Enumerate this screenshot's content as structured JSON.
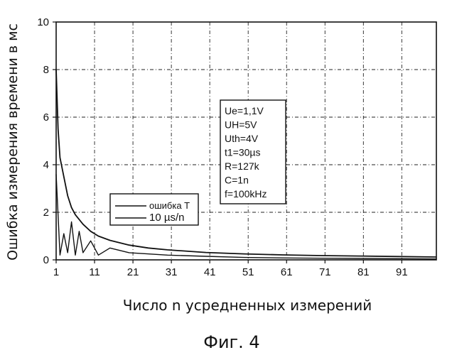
{
  "chart_data": {
    "type": "line",
    "ylabel": "Ошибка измерения времени в мс",
    "xlabel": "Число n усредненных измерений",
    "caption": "Фиг. 4",
    "xlim": [
      1,
      100
    ],
    "ylim": [
      0,
      10
    ],
    "x_ticks": [
      1,
      11,
      21,
      31,
      41,
      51,
      61,
      71,
      81,
      91
    ],
    "y_ticks": [
      0,
      2,
      4,
      6,
      8,
      10
    ],
    "grid": true,
    "legend_position": "center-left",
    "series": [
      {
        "name": "ошибка T",
        "style": "smooth decreasing curve",
        "x": [
          1,
          1.5,
          2,
          3,
          4,
          5,
          6,
          8,
          10,
          12,
          15,
          20,
          25,
          30,
          40,
          50,
          60,
          70,
          80,
          90,
          100
        ],
        "y": [
          8.0,
          5.5,
          4.3,
          3.5,
          2.7,
          2.2,
          1.9,
          1.5,
          1.2,
          1.0,
          0.82,
          0.62,
          0.5,
          0.42,
          0.31,
          0.25,
          0.21,
          0.18,
          0.16,
          0.14,
          0.12
        ]
      },
      {
        "name": "10 µs/n",
        "style": "oscillating curve under an envelope",
        "x": [
          1,
          2,
          3,
          4,
          5,
          6,
          7,
          8,
          10,
          12,
          15,
          20,
          30,
          40,
          50,
          60,
          70,
          80,
          90,
          100
        ],
        "y": [
          3.6,
          0.2,
          1.1,
          0.3,
          1.6,
          0.2,
          1.2,
          0.3,
          0.8,
          0.2,
          0.5,
          0.3,
          0.2,
          0.15,
          0.1,
          0.08,
          0.07,
          0.06,
          0.05,
          0.04
        ]
      }
    ],
    "annotation": [
      "Ue=1,1V",
      "UH=5V",
      "Uth=4V",
      "t1=30µs",
      "R=127k",
      "C=1n",
      "f=100kHz"
    ]
  }
}
